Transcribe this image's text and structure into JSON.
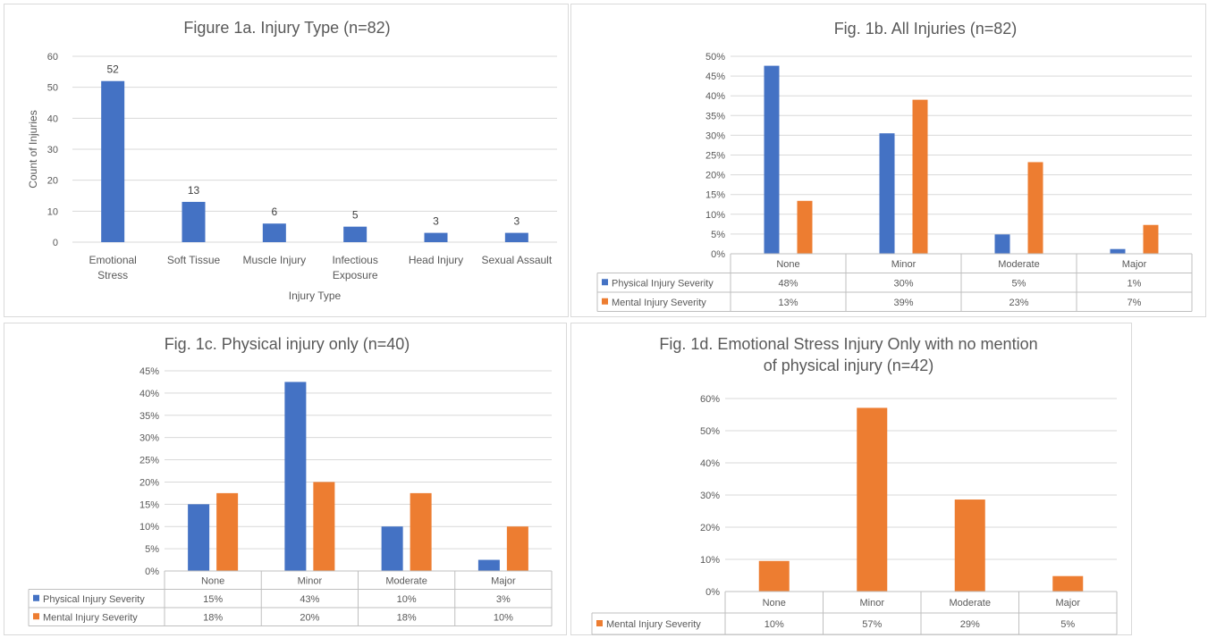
{
  "colors": {
    "physical": "#4472c4",
    "mental": "#ed7d31",
    "grid": "#d9d9d9",
    "text": "#595959"
  },
  "chart_data": [
    {
      "id": "fig1a",
      "type": "bar",
      "title": "Figure 1a. Injury Type (n=82)",
      "xlabel": "Injury Type",
      "ylabel": "Count of Injuries",
      "ylim": [
        0,
        60
      ],
      "yticks": [
        "0",
        "10",
        "20",
        "30",
        "40",
        "50",
        "60"
      ],
      "categories": [
        [
          "Emotional",
          "Stress"
        ],
        [
          "Soft Tissue"
        ],
        [
          "Muscle Injury"
        ],
        [
          "Infectious",
          "Exposure"
        ],
        [
          "Head Injury"
        ],
        [
          "Sexual Assault"
        ]
      ],
      "values": [
        52,
        13,
        6,
        5,
        3,
        3
      ],
      "data_labels": [
        "52",
        "13",
        "6",
        "5",
        "3",
        "3"
      ],
      "grid": true
    },
    {
      "id": "fig1b",
      "type": "bar",
      "title": "Fig. 1b. All Injuries (n=82)",
      "ylim": [
        0,
        0.5
      ],
      "yticks": [
        "0%",
        "5%",
        "10%",
        "15%",
        "20%",
        "25%",
        "30%",
        "35%",
        "40%",
        "45%",
        "50%"
      ],
      "categories": [
        "None",
        "Minor",
        "Moderate",
        "Major"
      ],
      "series": [
        {
          "name": "Physical Injury Severity",
          "values": [
            0.476,
            0.305,
            0.049,
            0.012
          ],
          "labels": [
            "48%",
            "30%",
            "5%",
            "1%"
          ]
        },
        {
          "name": "Mental Injury Severity",
          "values": [
            0.134,
            0.39,
            0.232,
            0.073
          ],
          "labels": [
            "13%",
            "39%",
            "23%",
            "7%"
          ]
        }
      ],
      "grid": true,
      "data_table": true
    },
    {
      "id": "fig1c",
      "type": "bar",
      "title": "Fig. 1c. Physical injury only (n=40)",
      "ylim": [
        0,
        0.45
      ],
      "yticks": [
        "0%",
        "5%",
        "10%",
        "15%",
        "20%",
        "25%",
        "30%",
        "35%",
        "40%",
        "45%"
      ],
      "categories": [
        "None",
        "Minor",
        "Moderate",
        "Major"
      ],
      "series": [
        {
          "name": "Physical Injury Severity",
          "values": [
            0.15,
            0.425,
            0.1,
            0.025
          ],
          "labels": [
            "15%",
            "43%",
            "10%",
            "3%"
          ]
        },
        {
          "name": "Mental Injury Severity",
          "values": [
            0.175,
            0.2,
            0.175,
            0.1
          ],
          "labels": [
            "18%",
            "20%",
            "18%",
            "10%"
          ]
        }
      ],
      "grid": true,
      "data_table": true
    },
    {
      "id": "fig1d",
      "type": "bar",
      "title": [
        "Fig. 1d.  Emotional Stress Injury Only with no mention",
        "of physical injury (n=42)"
      ],
      "ylim": [
        0,
        0.6
      ],
      "yticks": [
        "0%",
        "10%",
        "20%",
        "30%",
        "40%",
        "50%",
        "60%"
      ],
      "categories": [
        "None",
        "Minor",
        "Moderate",
        "Major"
      ],
      "series": [
        {
          "name": "Mental Injury Severity",
          "values": [
            0.095,
            0.571,
            0.286,
            0.048
          ],
          "labels": [
            "10%",
            "57%",
            "29%",
            "5%"
          ]
        }
      ],
      "grid": true,
      "data_table": true
    }
  ]
}
